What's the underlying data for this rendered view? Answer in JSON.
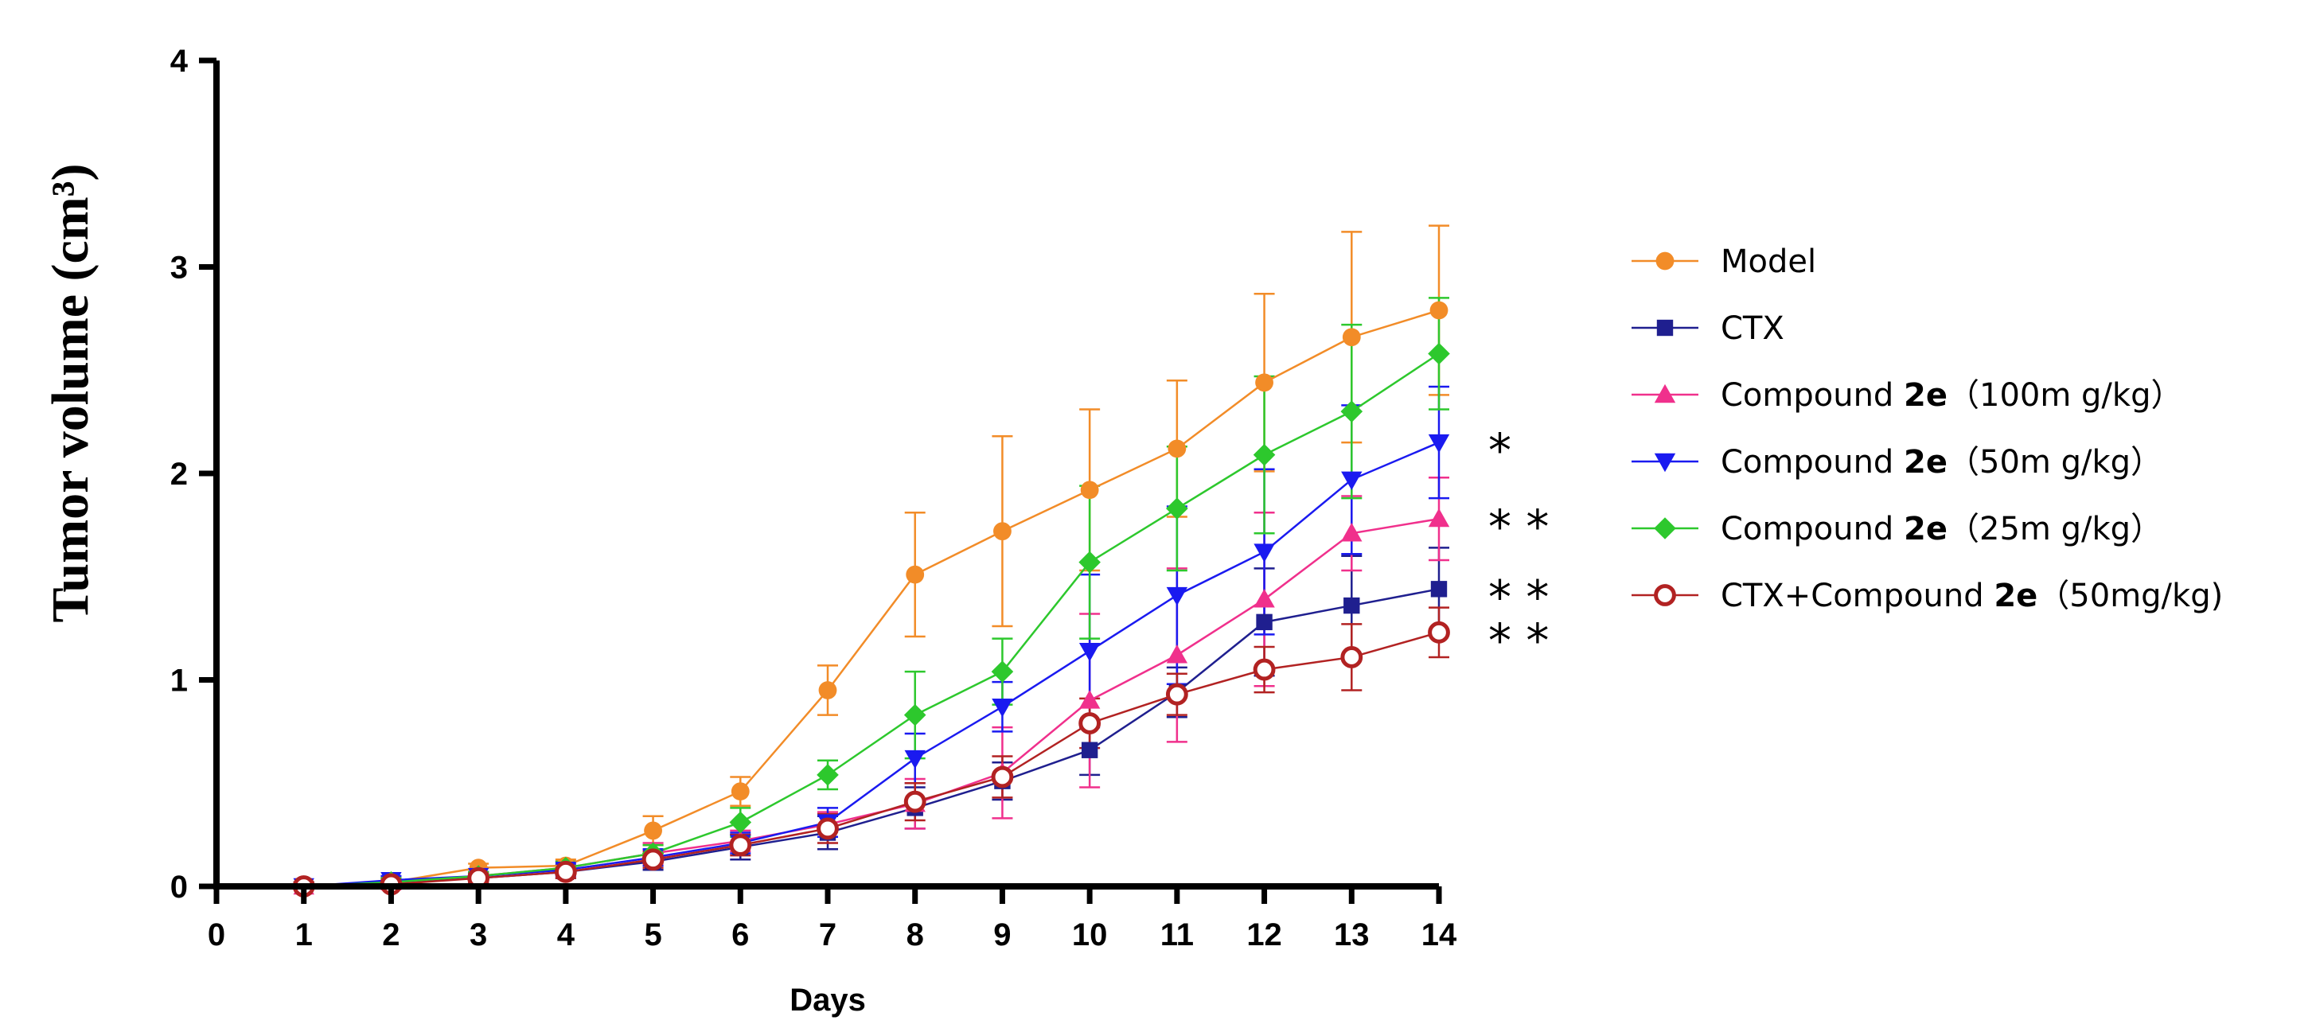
{
  "chart_data": {
    "type": "line",
    "title": "",
    "xlabel": "Days",
    "ylabel": "Tumor volume  (cm³)",
    "xlim": [
      0,
      14
    ],
    "ylim": [
      0,
      4
    ],
    "x_ticks": [
      "0",
      "1",
      "2",
      "3",
      "4",
      "5",
      "6",
      "7",
      "8",
      "9",
      "10",
      "11",
      "12",
      "13",
      "14"
    ],
    "y_ticks": [
      "0",
      "1",
      "2",
      "3",
      "4"
    ],
    "x": [
      1,
      2,
      3,
      4,
      5,
      6,
      7,
      8,
      9,
      10,
      11,
      12,
      13,
      14
    ],
    "legend_position": "right",
    "series": [
      {
        "name": "Model",
        "name_bold": "",
        "name_suffix": "",
        "color": "#F28C28",
        "marker": "circle-filled",
        "values": [
          0.0,
          0.02,
          0.09,
          0.1,
          0.27,
          0.46,
          0.95,
          1.51,
          1.72,
          1.92,
          2.12,
          2.44,
          2.66,
          2.79
        ],
        "errors": [
          0.02,
          0.02,
          0.02,
          0.03,
          0.07,
          0.07,
          0.12,
          0.3,
          0.46,
          0.39,
          0.33,
          0.43,
          0.51,
          0.41
        ],
        "significance": ""
      },
      {
        "name": "CTX",
        "name_bold": "",
        "name_suffix": "",
        "color": "#1F1F8F",
        "marker": "square-filled",
        "values": [
          0.0,
          0.02,
          0.04,
          0.07,
          0.12,
          0.19,
          0.26,
          0.38,
          0.51,
          0.66,
          0.94,
          1.28,
          1.36,
          1.44
        ],
        "errors": [
          0.02,
          0.02,
          0.02,
          0.03,
          0.04,
          0.06,
          0.08,
          0.1,
          0.09,
          0.12,
          0.12,
          0.26,
          0.24,
          0.2
        ],
        "significance": "**"
      },
      {
        "name": "Compound ",
        "name_bold": "2e",
        "name_suffix": "（100m g/kg）",
        "color": "#F0308C",
        "marker": "triangle-up",
        "values": [
          0.0,
          0.02,
          0.05,
          0.09,
          0.16,
          0.22,
          0.3,
          0.4,
          0.55,
          0.9,
          1.12,
          1.39,
          1.71,
          1.78
        ],
        "errors": [
          0.02,
          0.02,
          0.02,
          0.03,
          0.05,
          0.05,
          0.06,
          0.12,
          0.22,
          0.42,
          0.42,
          0.42,
          0.18,
          0.2
        ],
        "significance": "**"
      },
      {
        "name": "Compound ",
        "name_bold": "2e",
        "name_suffix": "（50m g/kg）",
        "color": "#1A1AF0",
        "marker": "triangle-down",
        "values": [
          0.0,
          0.03,
          0.05,
          0.08,
          0.14,
          0.21,
          0.31,
          0.62,
          0.87,
          1.14,
          1.41,
          1.62,
          1.97,
          2.15
        ],
        "errors": [
          0.02,
          0.02,
          0.02,
          0.03,
          0.04,
          0.05,
          0.07,
          0.12,
          0.12,
          0.37,
          0.43,
          0.4,
          0.36,
          0.27
        ],
        "significance": "*"
      },
      {
        "name": "Compound ",
        "name_bold": "2e",
        "name_suffix": "（25m g/kg）",
        "color": "#2DC82D",
        "marker": "diamond-filled",
        "values": [
          0.0,
          0.02,
          0.05,
          0.09,
          0.16,
          0.31,
          0.54,
          0.83,
          1.04,
          1.57,
          1.83,
          2.09,
          2.3,
          2.58
        ],
        "errors": [
          0.02,
          0.02,
          0.02,
          0.03,
          0.04,
          0.07,
          0.07,
          0.21,
          0.16,
          0.37,
          0.3,
          0.38,
          0.42,
          0.27
        ],
        "significance": ""
      },
      {
        "name": "CTX+Compound ",
        "name_bold": "2e",
        "name_suffix": "（50mg/kg)",
        "color": "#B22222",
        "marker": "circle-open",
        "values": [
          0.0,
          0.01,
          0.04,
          0.07,
          0.13,
          0.2,
          0.28,
          0.41,
          0.53,
          0.79,
          0.93,
          1.05,
          1.11,
          1.23
        ],
        "errors": [
          0.02,
          0.02,
          0.02,
          0.03,
          0.04,
          0.05,
          0.07,
          0.09,
          0.1,
          0.12,
          0.1,
          0.11,
          0.16,
          0.12
        ],
        "significance": "**"
      }
    ]
  }
}
